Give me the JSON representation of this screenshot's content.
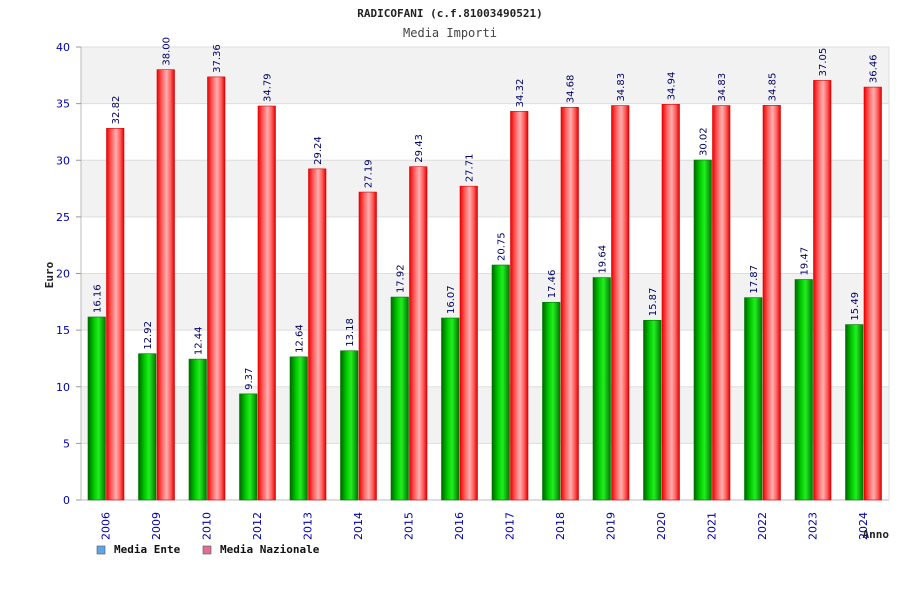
{
  "chart_data": {
    "type": "bar",
    "title": "RADICOFANI (c.f.81003490521)",
    "subtitle": "Media Importi",
    "ylabel": "Euro",
    "xlabel": "Anno",
    "ylim": [
      0,
      40
    ],
    "yticks": [
      "0",
      "5",
      "10",
      "15",
      "20",
      "25",
      "30",
      "35",
      "40"
    ],
    "grid": true,
    "legend_position": "bottom-left",
    "categories": [
      "2006",
      "2009",
      "2010",
      "2012",
      "2013",
      "2014",
      "2015",
      "2016",
      "2017",
      "2018",
      "2019",
      "2020",
      "2021",
      "2022",
      "2023",
      "2024"
    ],
    "series": [
      {
        "name": "Media Ente",
        "color": "#00aa00",
        "legend_color": "#5ca5e6",
        "values": [
          16.16,
          12.92,
          12.44,
          9.37,
          12.64,
          13.18,
          17.92,
          16.07,
          20.75,
          17.46,
          19.64,
          15.87,
          30.02,
          17.87,
          19.47,
          15.49
        ],
        "labels": [
          "16.16",
          "12.92",
          "12.44",
          "9.37",
          "12.64",
          "13.18",
          "17.92",
          "16.07",
          "20.75",
          "17.46",
          "19.64",
          "15.87",
          "30.02",
          "17.87",
          "19.47",
          "15.49"
        ]
      },
      {
        "name": "Media Nazionale",
        "color": "#ee1111",
        "legend_color": "#e07090",
        "values": [
          32.82,
          38.0,
          37.36,
          34.79,
          29.24,
          27.19,
          29.43,
          27.71,
          34.32,
          34.68,
          34.83,
          34.94,
          34.83,
          34.85,
          37.05,
          36.46
        ],
        "labels": [
          "32.82",
          "38.00",
          "37.36",
          "34.79",
          "29.24",
          "27.19",
          "29.43",
          "27.71",
          "34.32",
          "34.68",
          "34.83",
          "34.94",
          "34.83",
          "34.85",
          "37.05",
          "36.46"
        ]
      }
    ]
  }
}
